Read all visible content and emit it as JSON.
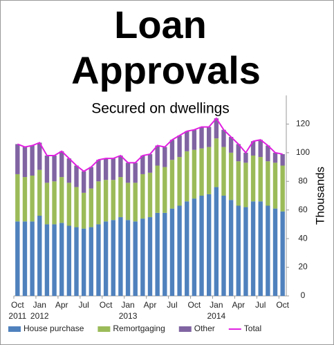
{
  "chart_data": {
    "type": "stacked-bar-line",
    "title_line1": "Loan",
    "title_line2": "Approvals",
    "subtitle": "Secured on dwellings",
    "y_label": "Thousands",
    "categories": [
      "Oct",
      null,
      null,
      "Jan",
      null,
      null,
      "Apr",
      null,
      null,
      "Jul",
      null,
      null,
      "Oct",
      null,
      null,
      "Jan",
      null,
      null,
      "Apr",
      null,
      null,
      "Jul",
      null,
      null,
      "Oct",
      null,
      null,
      "Jan",
      null,
      null,
      "Apr",
      null,
      null,
      "Jul",
      null,
      null,
      "Oct"
    ],
    "category_years": [
      "2011",
      null,
      null,
      "2012",
      null,
      null,
      null,
      null,
      null,
      null,
      null,
      null,
      null,
      null,
      null,
      "2013",
      null,
      null,
      null,
      null,
      null,
      null,
      null,
      null,
      null,
      null,
      null,
      "2014",
      null,
      null,
      null,
      null,
      null,
      null,
      null,
      null,
      null
    ],
    "series": [
      {
        "name": "House purchase",
        "color": "#4f81bd",
        "kind": "bar",
        "values": [
          52,
          52,
          52,
          56,
          50,
          50,
          51,
          49,
          48,
          47,
          48,
          50,
          52,
          53,
          55,
          53,
          52,
          54,
          55,
          58,
          58,
          61,
          63,
          66,
          68,
          70,
          71,
          76,
          70,
          67,
          63,
          62,
          66,
          66,
          63,
          61,
          59
        ]
      },
      {
        "name": "Remortgaging",
        "color": "#9bbb59",
        "kind": "bar",
        "values": [
          33,
          31,
          32,
          32,
          29,
          30,
          32,
          30,
          28,
          25,
          27,
          30,
          29,
          28,
          28,
          26,
          27,
          31,
          31,
          33,
          32,
          34,
          34,
          35,
          34,
          33,
          33,
          34,
          34,
          33,
          31,
          31,
          32,
          31,
          31,
          32,
          32
        ]
      },
      {
        "name": "Other",
        "color": "#8064a2",
        "kind": "bar",
        "values": [
          21,
          21,
          21,
          19,
          19,
          18,
          18,
          17,
          15,
          15,
          15,
          15,
          15,
          15,
          15,
          14,
          14,
          13,
          13,
          14,
          14,
          14,
          15,
          14,
          14,
          15,
          14,
          14,
          12,
          11,
          12,
          7,
          10,
          12,
          11,
          7,
          8
        ]
      },
      {
        "name": "Total",
        "color": "#e020e0",
        "kind": "line",
        "values": [
          106,
          104,
          105,
          107,
          98,
          98,
          101,
          96,
          91,
          87,
          90,
          95,
          96,
          96,
          98,
          93,
          93,
          98,
          99,
          105,
          104,
          109,
          112,
          115,
          116,
          118,
          118,
          124,
          116,
          111,
          106,
          100,
          108,
          109,
          105,
          100,
          99
        ]
      }
    ],
    "ylim": [
      0,
      140
    ],
    "yticks": [
      0,
      20,
      40,
      60,
      80,
      100,
      120
    ],
    "y_axis_side": "right"
  }
}
